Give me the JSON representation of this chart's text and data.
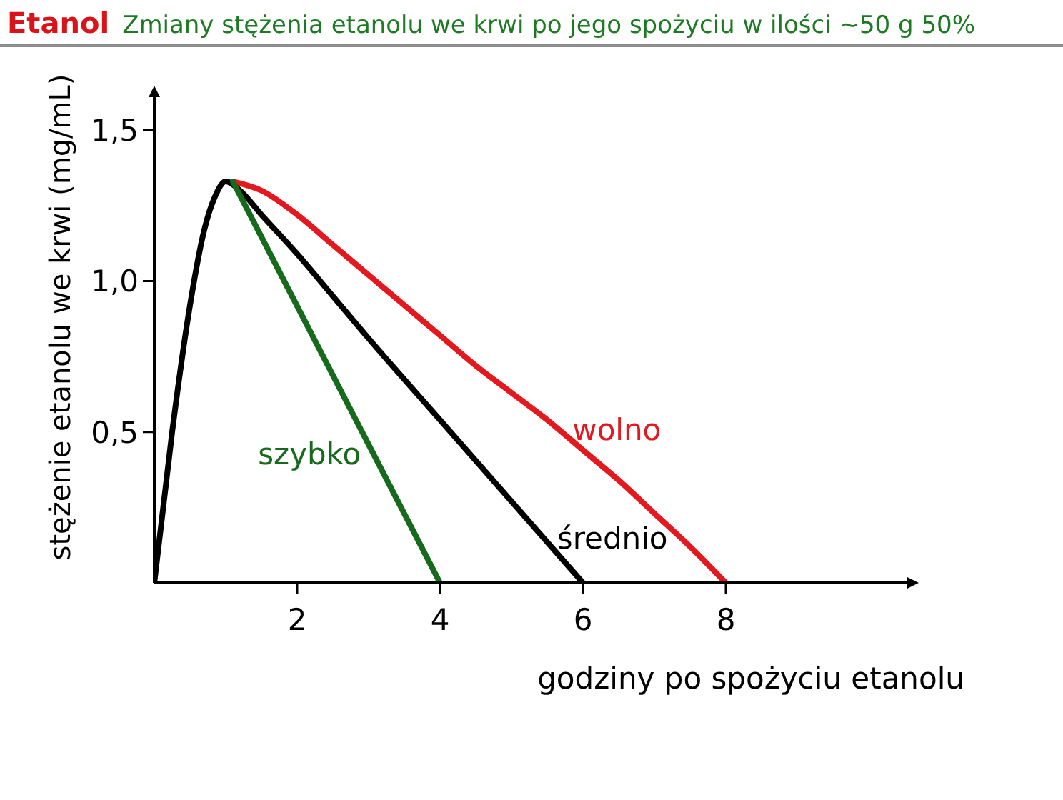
{
  "chart_data": {
    "type": "line",
    "title": "Etanol",
    "subtitle": "Zmiany stężenia etanolu we krwi po jego spożyciu w ilości ~50 g 50%",
    "xlabel": "godziny po spożyciu etanolu",
    "ylabel": "stężenie etanolu we krwi (mg/mL)",
    "xlim": [
      0,
      10.5
    ],
    "xticks": [
      2,
      4,
      6,
      8
    ],
    "ylim": [
      0,
      1.6
    ],
    "yticks": [
      {
        "value": 0.5,
        "label": "0,5"
      },
      {
        "value": 1,
        "label": "1,0"
      },
      {
        "value": 1.5,
        "label": "1,5"
      }
    ],
    "series": [
      {
        "name": "szybko",
        "color": "#17691d",
        "x": [
          1.1,
          4
        ],
        "values": [
          1.33,
          0
        ]
      },
      {
        "name": "średnio",
        "color": "#000000",
        "x": [
          0,
          0.25,
          0.5,
          0.7,
          0.85,
          1.0,
          1.2,
          1.5,
          2,
          2.5,
          3,
          4,
          5,
          6
        ],
        "values": [
          0,
          0.5,
          0.92,
          1.17,
          1.28,
          1.33,
          1.3,
          1.22,
          1.09,
          0.95,
          0.81,
          0.54,
          0.27,
          0
        ]
      },
      {
        "name": "wolno",
        "color": "#e3191f",
        "x": [
          1.1,
          1.5,
          2,
          2.5,
          3,
          3.5,
          4,
          4.5,
          5,
          5.5,
          6,
          6.5,
          7,
          7.5,
          8
        ],
        "values": [
          1.33,
          1.3,
          1.22,
          1.12,
          1.02,
          0.92,
          0.82,
          0.72,
          0.63,
          0.54,
          0.44,
          0.34,
          0.23,
          0.12,
          0
        ]
      }
    ]
  }
}
